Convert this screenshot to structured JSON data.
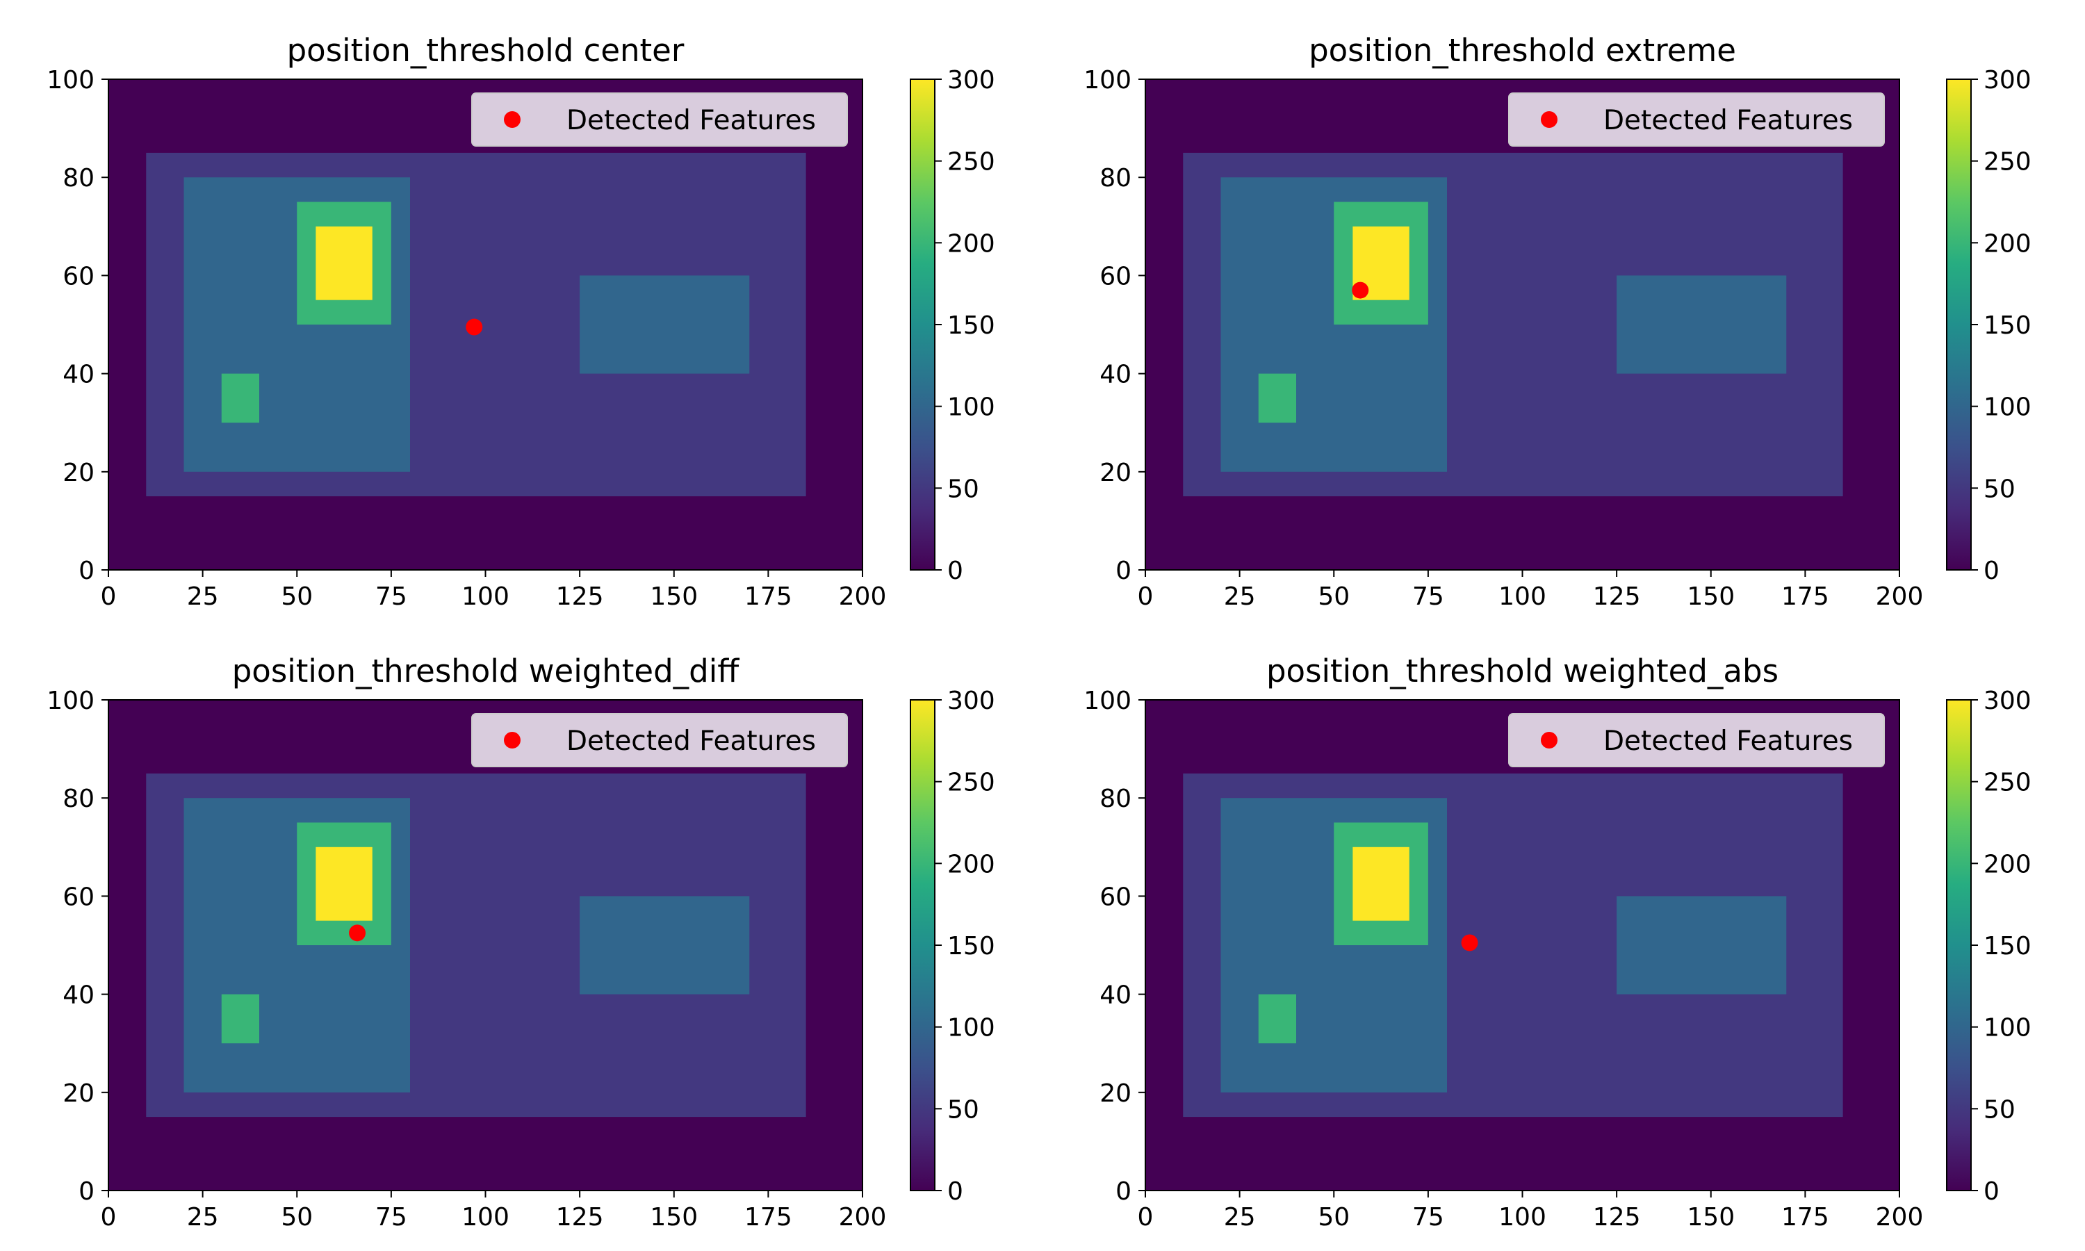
{
  "chart_data": [
    {
      "type": "heatmap",
      "title": "position_threshold center",
      "xlim": [
        0,
        200
      ],
      "ylim": [
        0,
        100
      ],
      "xticks": [
        0,
        25,
        50,
        75,
        100,
        125,
        150,
        175,
        200
      ],
      "yticks": [
        0,
        20,
        40,
        60,
        80,
        100
      ],
      "colorbar": {
        "min": 0,
        "max": 300,
        "ticks": [
          0,
          50,
          100,
          150,
          200,
          250,
          300
        ],
        "colormap": "viridis"
      },
      "regions": [
        {
          "x0": 0,
          "x1": 200,
          "y0": 0,
          "y1": 100,
          "value": 0
        },
        {
          "x0": 10,
          "x1": 185,
          "y0": 15,
          "y1": 85,
          "value": 50
        },
        {
          "x0": 20,
          "x1": 80,
          "y0": 20,
          "y1": 80,
          "value": 100
        },
        {
          "x0": 125,
          "x1": 170,
          "y0": 40,
          "y1": 60,
          "value": 100
        },
        {
          "x0": 50,
          "x1": 75,
          "y0": 50,
          "y1": 75,
          "value": 200
        },
        {
          "x0": 55,
          "x1": 70,
          "y0": 55,
          "y1": 70,
          "value": 300
        },
        {
          "x0": 30,
          "x1": 40,
          "y0": 30,
          "y1": 40,
          "value": 200
        }
      ],
      "points": [
        {
          "x": 97,
          "y": 49.5
        }
      ],
      "legend": {
        "label": "Detected Features",
        "color": "#ff0000",
        "placement": "upper right"
      }
    },
    {
      "type": "heatmap",
      "title": "position_threshold extreme",
      "xlim": [
        0,
        200
      ],
      "ylim": [
        0,
        100
      ],
      "xticks": [
        0,
        25,
        50,
        75,
        100,
        125,
        150,
        175,
        200
      ],
      "yticks": [
        0,
        20,
        40,
        60,
        80,
        100
      ],
      "colorbar": {
        "min": 0,
        "max": 300,
        "ticks": [
          0,
          50,
          100,
          150,
          200,
          250,
          300
        ],
        "colormap": "viridis"
      },
      "regions": [
        {
          "x0": 0,
          "x1": 200,
          "y0": 0,
          "y1": 100,
          "value": 0
        },
        {
          "x0": 10,
          "x1": 185,
          "y0": 15,
          "y1": 85,
          "value": 50
        },
        {
          "x0": 20,
          "x1": 80,
          "y0": 20,
          "y1": 80,
          "value": 100
        },
        {
          "x0": 125,
          "x1": 170,
          "y0": 40,
          "y1": 60,
          "value": 100
        },
        {
          "x0": 50,
          "x1": 75,
          "y0": 50,
          "y1": 75,
          "value": 200
        },
        {
          "x0": 55,
          "x1": 70,
          "y0": 55,
          "y1": 70,
          "value": 300
        },
        {
          "x0": 30,
          "x1": 40,
          "y0": 30,
          "y1": 40,
          "value": 200
        }
      ],
      "points": [
        {
          "x": 57,
          "y": 57
        }
      ],
      "legend": {
        "label": "Detected Features",
        "color": "#ff0000",
        "placement": "upper right"
      }
    },
    {
      "type": "heatmap",
      "title": "position_threshold weighted_diff",
      "xlim": [
        0,
        200
      ],
      "ylim": [
        0,
        100
      ],
      "xticks": [
        0,
        25,
        50,
        75,
        100,
        125,
        150,
        175,
        200
      ],
      "yticks": [
        0,
        20,
        40,
        60,
        80,
        100
      ],
      "colorbar": {
        "min": 0,
        "max": 300,
        "ticks": [
          0,
          50,
          100,
          150,
          200,
          250,
          300
        ],
        "colormap": "viridis"
      },
      "regions": [
        {
          "x0": 0,
          "x1": 200,
          "y0": 0,
          "y1": 100,
          "value": 0
        },
        {
          "x0": 10,
          "x1": 185,
          "y0": 15,
          "y1": 85,
          "value": 50
        },
        {
          "x0": 20,
          "x1": 80,
          "y0": 20,
          "y1": 80,
          "value": 100
        },
        {
          "x0": 125,
          "x1": 170,
          "y0": 40,
          "y1": 60,
          "value": 100
        },
        {
          "x0": 50,
          "x1": 75,
          "y0": 50,
          "y1": 75,
          "value": 200
        },
        {
          "x0": 55,
          "x1": 70,
          "y0": 55,
          "y1": 70,
          "value": 300
        },
        {
          "x0": 30,
          "x1": 40,
          "y0": 30,
          "y1": 40,
          "value": 200
        }
      ],
      "points": [
        {
          "x": 66,
          "y": 52.5
        }
      ],
      "legend": {
        "label": "Detected Features",
        "color": "#ff0000",
        "placement": "upper right"
      }
    },
    {
      "type": "heatmap",
      "title": "position_threshold weighted_abs",
      "xlim": [
        0,
        200
      ],
      "ylim": [
        0,
        100
      ],
      "xticks": [
        0,
        25,
        50,
        75,
        100,
        125,
        150,
        175,
        200
      ],
      "yticks": [
        0,
        20,
        40,
        60,
        80,
        100
      ],
      "colorbar": {
        "min": 0,
        "max": 300,
        "ticks": [
          0,
          50,
          100,
          150,
          200,
          250,
          300
        ],
        "colormap": "viridis"
      },
      "regions": [
        {
          "x0": 0,
          "x1": 200,
          "y0": 0,
          "y1": 100,
          "value": 0
        },
        {
          "x0": 10,
          "x1": 185,
          "y0": 15,
          "y1": 85,
          "value": 50
        },
        {
          "x0": 20,
          "x1": 80,
          "y0": 20,
          "y1": 80,
          "value": 100
        },
        {
          "x0": 125,
          "x1": 170,
          "y0": 40,
          "y1": 60,
          "value": 100
        },
        {
          "x0": 50,
          "x1": 75,
          "y0": 50,
          "y1": 75,
          "value": 200
        },
        {
          "x0": 55,
          "x1": 70,
          "y0": 55,
          "y1": 70,
          "value": 300
        },
        {
          "x0": 30,
          "x1": 40,
          "y0": 30,
          "y1": 40,
          "value": 200
        }
      ],
      "points": [
        {
          "x": 86,
          "y": 50.5
        }
      ],
      "legend": {
        "label": "Detected Features",
        "color": "#ff0000",
        "placement": "upper right"
      }
    }
  ]
}
